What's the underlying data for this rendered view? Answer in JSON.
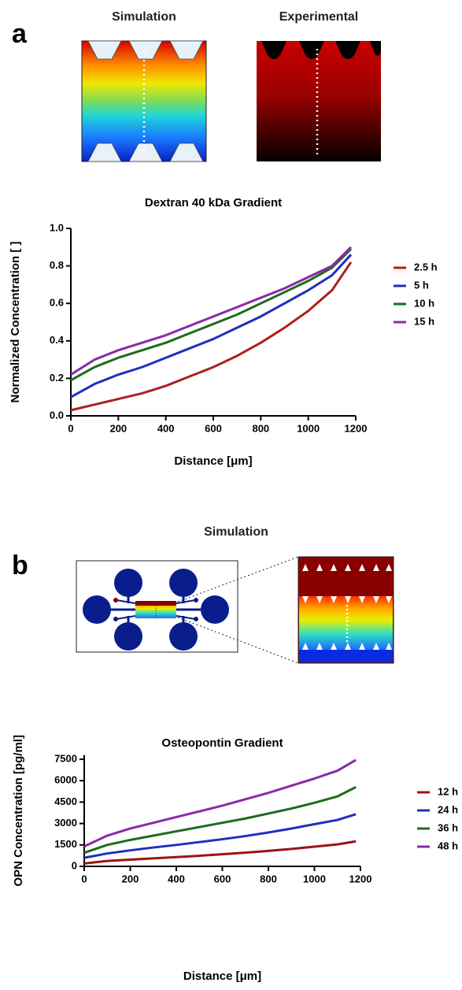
{
  "panel_labels": [
    "a",
    "b"
  ],
  "image_titles": [
    "Simulation",
    "Experimental",
    "Simulation"
  ],
  "chart_data": [
    {
      "type": "line",
      "title": "Dextran 40 kDa Gradient",
      "x_label": "Distance [μm]",
      "y_label": "Normalized Concentration [ ]",
      "x": [
        0,
        100,
        200,
        300,
        400,
        500,
        600,
        700,
        800,
        900,
        1000,
        1100,
        1180
      ],
      "series": [
        {
          "name": "2.5 h",
          "color": "#b01e1e",
          "values": [
            0.03,
            0.06,
            0.09,
            0.12,
            0.16,
            0.21,
            0.26,
            0.32,
            0.39,
            0.47,
            0.56,
            0.67,
            0.82
          ]
        },
        {
          "name": "5 h",
          "color": "#1f2fbf",
          "values": [
            0.1,
            0.17,
            0.22,
            0.26,
            0.31,
            0.36,
            0.41,
            0.47,
            0.53,
            0.6,
            0.67,
            0.75,
            0.86
          ]
        },
        {
          "name": "10 h",
          "color": "#1e6b1e",
          "values": [
            0.19,
            0.26,
            0.31,
            0.35,
            0.39,
            0.44,
            0.49,
            0.54,
            0.6,
            0.66,
            0.72,
            0.79,
            0.89
          ]
        },
        {
          "name": "15 h",
          "color": "#8a2aa8",
          "values": [
            0.22,
            0.3,
            0.35,
            0.39,
            0.43,
            0.48,
            0.53,
            0.58,
            0.63,
            0.68,
            0.74,
            0.8,
            0.9
          ]
        }
      ],
      "xlim": [
        0,
        1200
      ],
      "xticks": [
        0,
        200,
        400,
        600,
        800,
        1000,
        1200
      ],
      "ylim": [
        0,
        1.0
      ],
      "yticks": [
        {
          "value": 0,
          "label": "0.0"
        },
        0.2,
        0.4,
        0.6,
        0.8,
        {
          "value": 1,
          "label": "1.0"
        }
      ],
      "legend": "right"
    },
    {
      "type": "line",
      "title": "Osteopontin Gradient",
      "x_label": "Distance [μm]",
      "y_label": "OPN Concentration [pg/ml]",
      "x": [
        0,
        100,
        200,
        300,
        400,
        500,
        600,
        700,
        800,
        900,
        1000,
        1100,
        1180
      ],
      "series": [
        {
          "name": "12 h",
          "color": "#9b1414",
          "values": [
            200,
            380,
            470,
            560,
            650,
            740,
            850,
            960,
            1080,
            1220,
            1380,
            1540,
            1750
          ]
        },
        {
          "name": "24 h",
          "color": "#1f2fbf",
          "values": [
            600,
            900,
            1120,
            1320,
            1500,
            1700,
            1900,
            2120,
            2370,
            2650,
            2950,
            3250,
            3650
          ]
        },
        {
          "name": "36 h",
          "color": "#1e6b1e",
          "values": [
            950,
            1500,
            1850,
            2150,
            2450,
            2750,
            3050,
            3350,
            3700,
            4050,
            4450,
            4900,
            5550
          ]
        },
        {
          "name": "48 h",
          "color": "#8a2aa8",
          "values": [
            1400,
            2150,
            2650,
            3050,
            3450,
            3850,
            4250,
            4700,
            5150,
            5650,
            6150,
            6700,
            7450
          ]
        }
      ],
      "xlim": [
        0,
        1200
      ],
      "xticks": [
        0,
        200,
        400,
        600,
        800,
        1000,
        1200
      ],
      "ylim": [
        0,
        7800
      ],
      "yticks": [
        0,
        1500,
        3000,
        4500,
        6000,
        7500
      ],
      "legend": "right"
    }
  ]
}
